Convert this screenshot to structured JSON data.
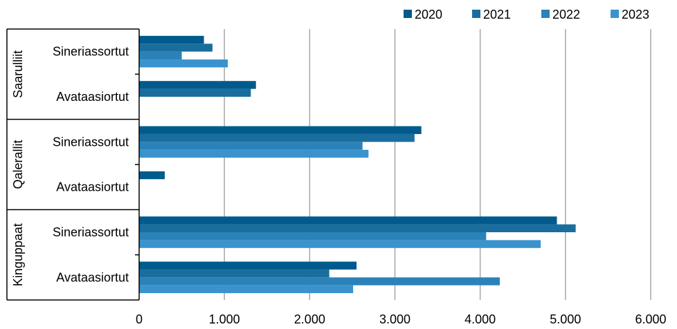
{
  "chart_data": {
    "type": "bar",
    "orientation": "horizontal",
    "title": "",
    "xlabel": "",
    "ylabel": "",
    "xlim": [
      0,
      6000
    ],
    "x_ticks": [
      0,
      1000,
      2000,
      3000,
      4000,
      5000,
      6000
    ],
    "x_tick_labels": [
      "0",
      "1.000",
      "2.000",
      "3.000",
      "4.000",
      "5.000",
      "6.000"
    ],
    "grid": "vertical",
    "legend_position": "top-right",
    "series": [
      {
        "name": "2020",
        "color": "#005b8c"
      },
      {
        "name": "2021",
        "color": "#1a6e9e"
      },
      {
        "name": "2022",
        "color": "#2b82b8"
      },
      {
        "name": "2023",
        "color": "#3a93cc"
      }
    ],
    "groups": [
      {
        "name": "Saarulliit",
        "categories": [
          {
            "label": "Sineriassortut",
            "values": [
              760,
              860,
              500,
              1040
            ]
          },
          {
            "label": "Avataasiortut",
            "values": [
              1370,
              1310,
              null,
              null
            ]
          }
        ]
      },
      {
        "name": "Qalerallit",
        "categories": [
          {
            "label": "Sineriassortut",
            "values": [
              3310,
              3230,
              2620,
              2690
            ]
          },
          {
            "label": "Avataasiortut",
            "values": [
              300,
              null,
              null,
              null
            ]
          }
        ]
      },
      {
        "name": "Kinguppaat",
        "categories": [
          {
            "label": "Sineriassortut",
            "values": [
              4900,
              5120,
              4070,
              4710
            ]
          },
          {
            "label": "Avataasiortut",
            "values": [
              2550,
              2230,
              4230,
              2510
            ]
          }
        ]
      }
    ]
  }
}
